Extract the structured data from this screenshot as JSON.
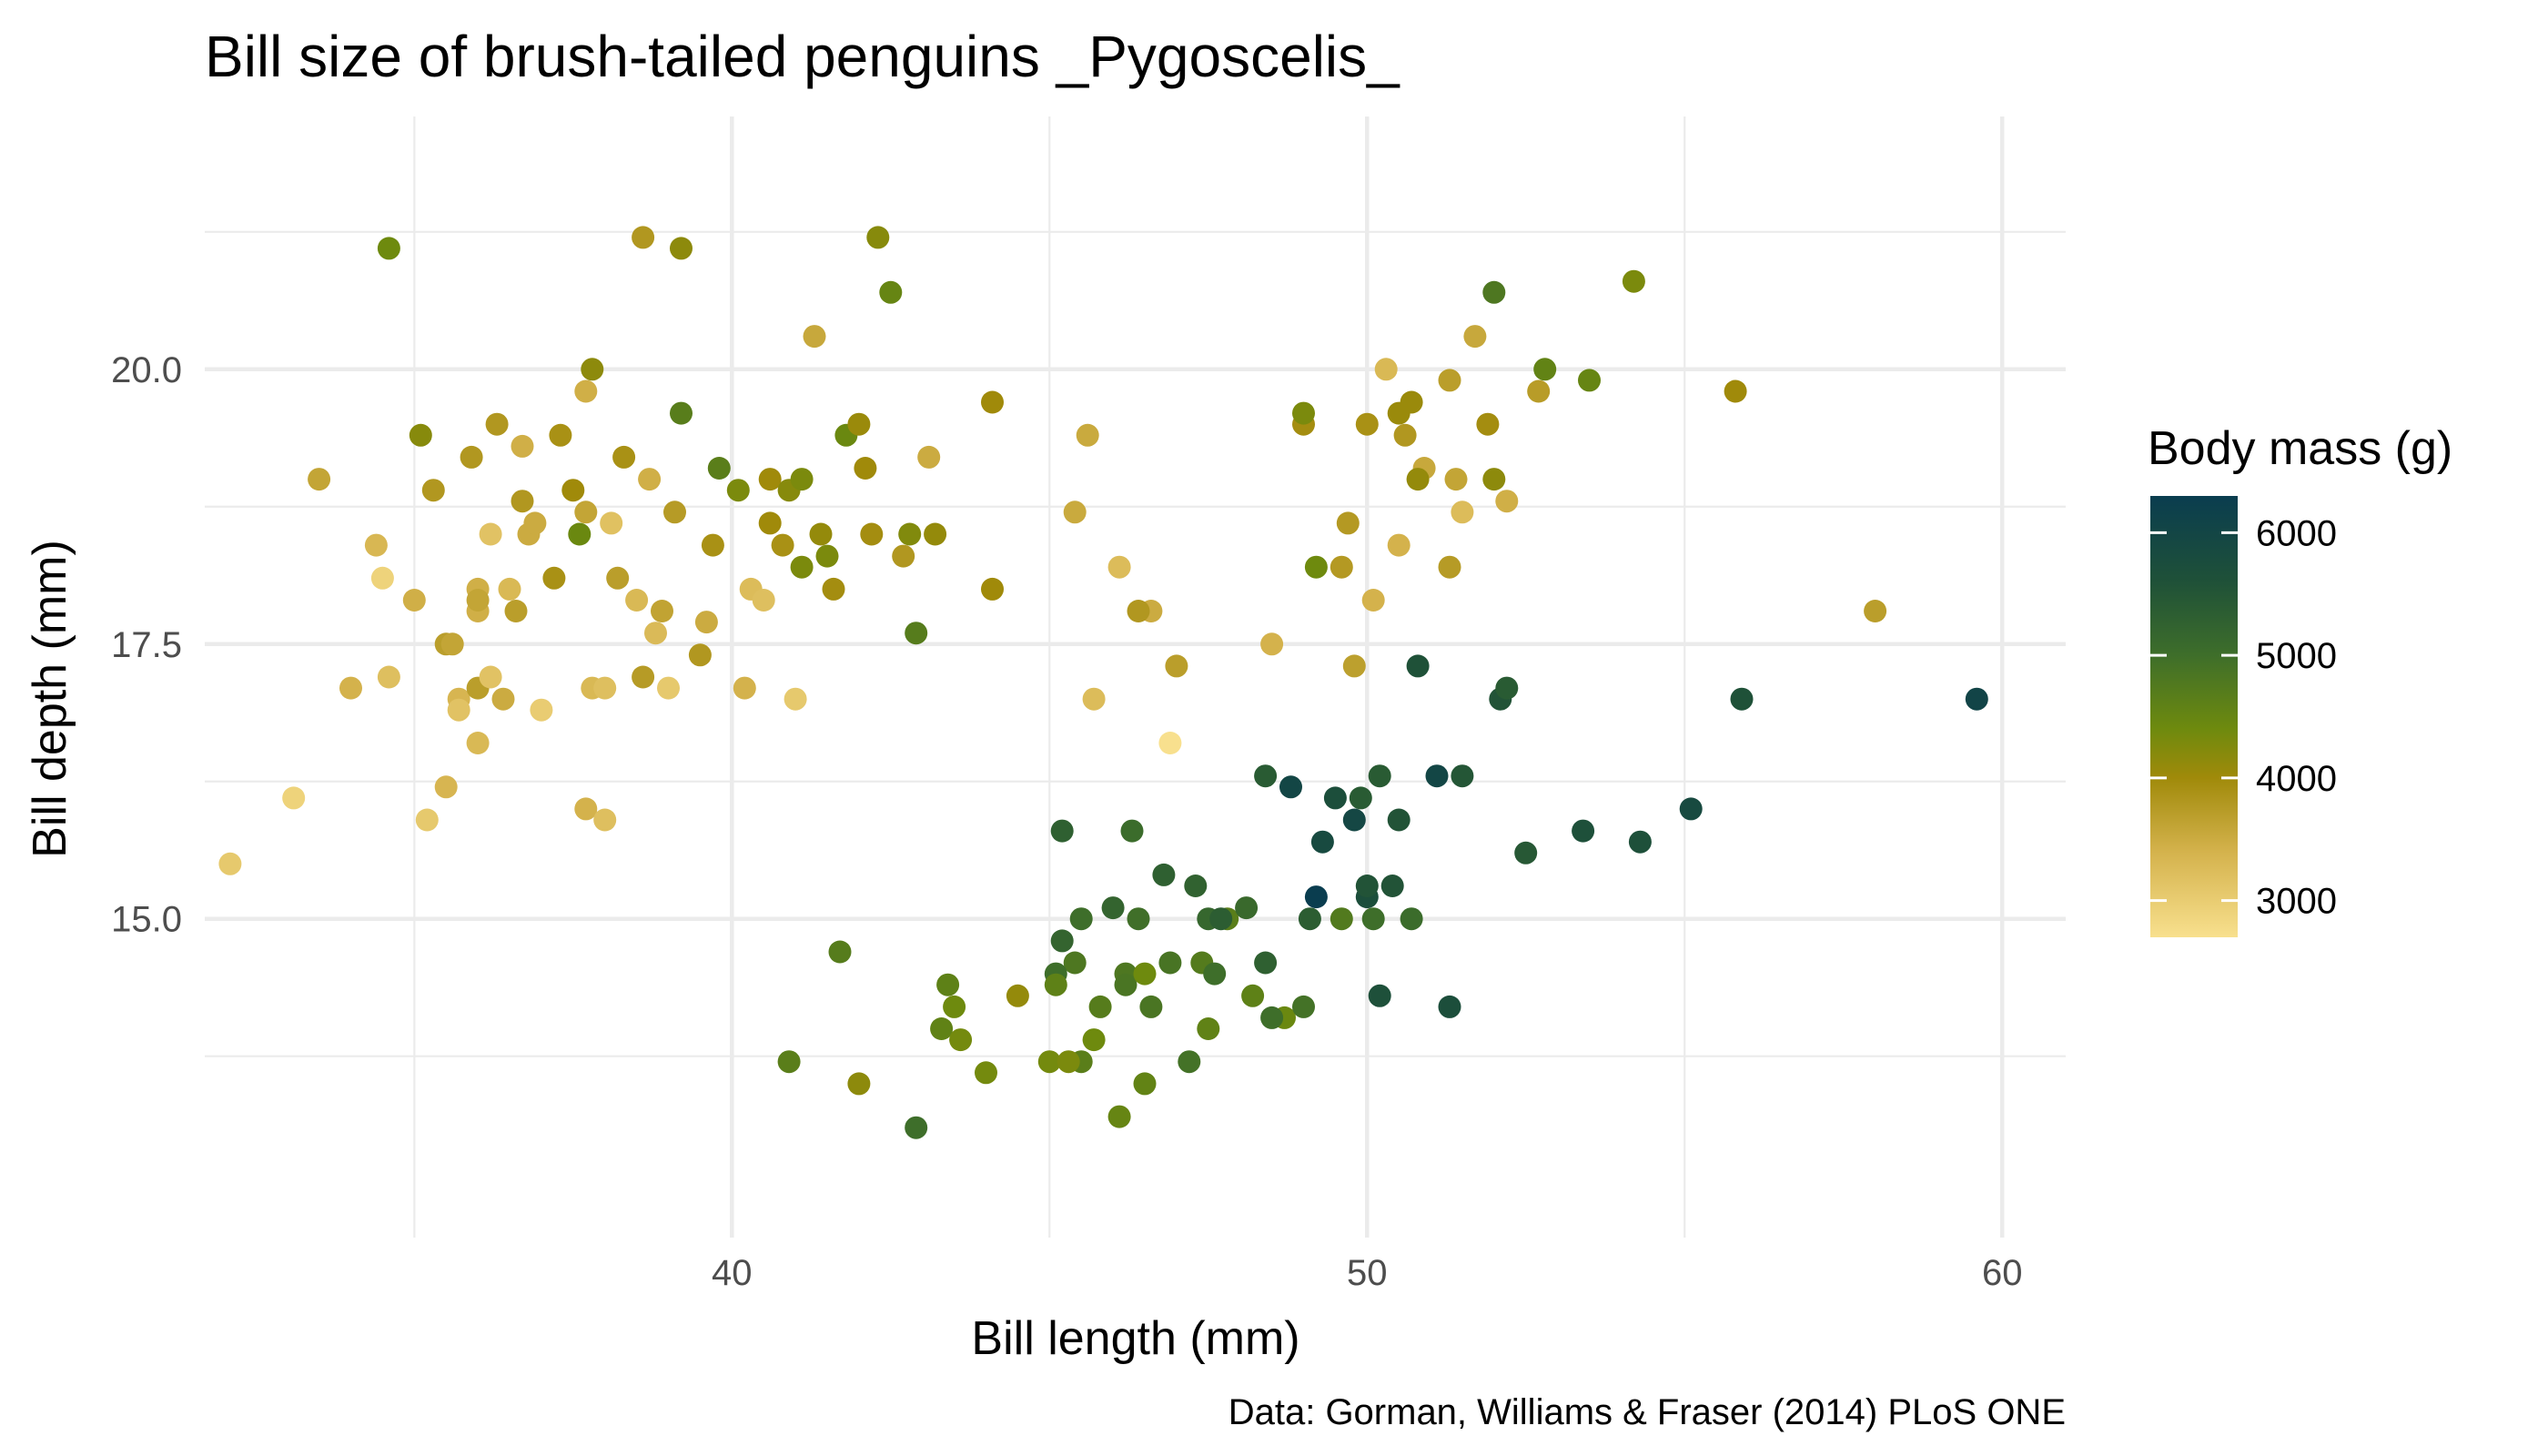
{
  "chart_data": {
    "type": "scatter",
    "title": "Bill size of brush-tailed penguins _Pygoscelis_",
    "xlabel": "Bill length (mm)",
    "ylabel": "Bill depth (mm)",
    "caption": "Data: Gorman, Williams & Fraser (2014) PLoS ONE",
    "xlim": [
      31.7,
      61.0
    ],
    "ylim": [
      12.1,
      22.3
    ],
    "x_major_ticks": [
      40,
      50,
      60
    ],
    "x_tick_labels": [
      "40",
      "50",
      "60"
    ],
    "x_minor_ticks": [
      35,
      45,
      55
    ],
    "y_major_ticks": [
      15.0,
      17.5,
      20.0
    ],
    "y_tick_labels": [
      "15.0",
      "17.5",
      "20.0"
    ],
    "y_minor_ticks": [
      13.75,
      16.25,
      18.75,
      21.25
    ],
    "grid": true,
    "color_scale": {
      "variable": "Body mass (g)",
      "min": 2700,
      "max": 6300,
      "ticks": [
        3000,
        4000,
        5000,
        6000
      ],
      "tick_labels": [
        "3000",
        "4000",
        "5000",
        "6000"
      ],
      "colors": [
        {
          "value": 2700,
          "color": "#f8e08e"
        },
        {
          "value": 3400,
          "color": "#d4b24c"
        },
        {
          "value": 4000,
          "color": "#a08a0a"
        },
        {
          "value": 4400,
          "color": "#6e8a0e"
        },
        {
          "value": 5000,
          "color": "#3e6e2a"
        },
        {
          "value": 5600,
          "color": "#1f5138"
        },
        {
          "value": 6300,
          "color": "#0a3d4f"
        }
      ]
    },
    "points": [
      [
        32.1,
        15.5,
        3050
      ],
      [
        33.1,
        16.1,
        2900
      ],
      [
        33.5,
        19.0,
        3600
      ],
      [
        34.0,
        17.1,
        3400
      ],
      [
        34.4,
        18.4,
        3325
      ],
      [
        34.5,
        18.1,
        2900
      ],
      [
        34.6,
        17.2,
        3200
      ],
      [
        34.6,
        21.1,
        4400
      ],
      [
        35.0,
        17.9,
        3450
      ],
      [
        35.1,
        19.4,
        4200
      ],
      [
        35.2,
        15.9,
        3050
      ],
      [
        35.3,
        18.9,
        3800
      ],
      [
        35.5,
        16.2,
        3350
      ],
      [
        35.5,
        17.5,
        3700
      ],
      [
        35.6,
        17.5,
        3600
      ],
      [
        35.7,
        17.0,
        3350
      ],
      [
        35.7,
        16.9,
        3150
      ],
      [
        35.9,
        19.2,
        3800
      ],
      [
        36.0,
        18.0,
        3450
      ],
      [
        36.0,
        17.1,
        3700
      ],
      [
        36.0,
        17.8,
        3450
      ],
      [
        36.0,
        16.6,
        3300
      ],
      [
        36.0,
        17.9,
        3600
      ],
      [
        36.2,
        18.5,
        3150
      ],
      [
        36.2,
        17.2,
        3150
      ],
      [
        36.3,
        19.5,
        3800
      ],
      [
        36.4,
        17.0,
        3500
      ],
      [
        36.5,
        18.0,
        3300
      ],
      [
        36.6,
        17.8,
        3700
      ],
      [
        36.7,
        18.8,
        3800
      ],
      [
        36.7,
        19.3,
        3450
      ],
      [
        36.8,
        18.5,
        3500
      ],
      [
        36.9,
        18.6,
        3500
      ],
      [
        37.0,
        16.9,
        3000
      ],
      [
        37.2,
        18.1,
        3900
      ],
      [
        37.3,
        19.4,
        3900
      ],
      [
        37.5,
        18.9,
        4000
      ],
      [
        37.6,
        18.5,
        4450
      ],
      [
        37.7,
        18.7,
        3600
      ],
      [
        37.7,
        19.8,
        3450
      ],
      [
        37.7,
        16.0,
        3400
      ],
      [
        37.8,
        17.1,
        3300
      ],
      [
        37.8,
        20.0,
        4150
      ],
      [
        38.0,
        17.1,
        3200
      ],
      [
        38.0,
        15.9,
        3200
      ],
      [
        38.1,
        18.6,
        3175
      ],
      [
        38.2,
        18.1,
        3700
      ],
      [
        38.3,
        19.2,
        3900
      ],
      [
        38.5,
        17.9,
        3300
      ],
      [
        38.6,
        21.2,
        3800
      ],
      [
        38.6,
        17.2,
        3750
      ],
      [
        38.7,
        19.0,
        3450
      ],
      [
        38.8,
        17.6,
        3275
      ],
      [
        38.9,
        17.8,
        3625
      ],
      [
        39.0,
        17.1,
        3050
      ],
      [
        39.1,
        18.7,
        3750
      ],
      [
        39.2,
        19.6,
        4675
      ],
      [
        39.2,
        21.1,
        4150
      ],
      [
        39.5,
        17.4,
        3800
      ],
      [
        39.6,
        17.7,
        3500
      ],
      [
        39.7,
        18.4,
        3900
      ],
      [
        39.8,
        19.1,
        4650
      ],
      [
        40.1,
        18.9,
        4300
      ],
      [
        40.2,
        17.1,
        3400
      ],
      [
        40.3,
        18.0,
        3250
      ],
      [
        40.5,
        17.9,
        3200
      ],
      [
        40.6,
        18.6,
        4000
      ],
      [
        40.6,
        19.0,
        4000
      ],
      [
        40.8,
        18.4,
        3900
      ],
      [
        40.9,
        18.9,
        4200
      ],
      [
        41.0,
        17.0,
        3050
      ],
      [
        41.1,
        18.2,
        4300
      ],
      [
        41.1,
        19.0,
        4300
      ],
      [
        41.3,
        20.3,
        3550
      ],
      [
        41.4,
        18.5,
        4100
      ],
      [
        41.5,
        18.3,
        4300
      ],
      [
        41.6,
        18.0,
        3950
      ],
      [
        41.8,
        19.4,
        4450
      ],
      [
        42.0,
        19.5,
        4050
      ],
      [
        42.1,
        19.1,
        4000
      ],
      [
        42.2,
        18.5,
        3950
      ],
      [
        42.3,
        21.2,
        4200
      ],
      [
        42.5,
        20.7,
        4500
      ],
      [
        42.7,
        18.3,
        3800
      ],
      [
        42.8,
        18.5,
        4250
      ],
      [
        42.9,
        17.6,
        4700
      ],
      [
        43.1,
        19.2,
        3500
      ],
      [
        43.2,
        18.5,
        4100
      ],
      [
        44.1,
        18.0,
        4000
      ],
      [
        44.1,
        19.7,
        4000
      ],
      [
        45.4,
        14.6,
        4800
      ],
      [
        45.2,
        15.8,
        5300
      ],
      [
        45.5,
        13.7,
        4650
      ],
      [
        46.1,
        13.2,
        4500
      ],
      [
        46.5,
        13.5,
        4550
      ],
      [
        46.2,
        14.5,
        4800
      ],
      [
        46.8,
        15.4,
        5300
      ],
      [
        47.3,
        15.3,
        5250
      ],
      [
        47.5,
        15.0,
        5150
      ],
      [
        48.2,
        14.3,
        4600
      ],
      [
        48.4,
        14.6,
        5300
      ],
      [
        48.7,
        14.1,
        4450
      ],
      [
        49.1,
        15.0,
        5350
      ],
      [
        49.2,
        15.2,
        6300
      ],
      [
        49.5,
        16.1,
        5700
      ],
      [
        49.8,
        15.9,
        5950
      ],
      [
        50.0,
        15.2,
        5700
      ],
      [
        50.1,
        15.0,
        5000
      ],
      [
        50.5,
        15.9,
        5550
      ],
      [
        50.7,
        15.0,
        5050
      ],
      [
        51.1,
        16.3,
        6000
      ],
      [
        51.5,
        16.3,
        5500
      ],
      [
        52.1,
        17.0,
        5550
      ],
      [
        52.5,
        15.6,
        5450
      ],
      [
        53.4,
        15.8,
        5650
      ],
      [
        54.3,
        15.7,
        5650
      ],
      [
        55.1,
        16.0,
        5850
      ],
      [
        55.9,
        17.0,
        5600
      ],
      [
        59.6,
        17.0,
        6050
      ],
      [
        48.5,
        14.1,
        5000
      ],
      [
        47.2,
        13.7,
        4925
      ],
      [
        46.9,
        14.6,
        4875
      ],
      [
        45.8,
        14.2,
        4700
      ],
      [
        43.5,
        14.2,
        4400
      ],
      [
        42.9,
        13.1,
        5000
      ],
      [
        44.5,
        14.3,
        4100
      ],
      [
        45.1,
        14.5,
        5000
      ],
      [
        46.3,
        15.8,
        5050
      ],
      [
        50.4,
        15.3,
        5550
      ],
      [
        49.9,
        16.1,
        5400
      ],
      [
        48.8,
        16.2,
        6000
      ],
      [
        47.8,
        15.0,
        4650
      ],
      [
        46.6,
        14.2,
        4850
      ],
      [
        45.2,
        14.8,
        5200
      ],
      [
        41.7,
        14.7,
        4700
      ],
      [
        40.9,
        13.7,
        4650
      ],
      [
        42.0,
        13.5,
        4150
      ],
      [
        43.4,
        14.4,
        4600
      ],
      [
        43.3,
        14.0,
        4575
      ],
      [
        43.6,
        13.9,
        4350
      ],
      [
        44.0,
        13.6,
        4350
      ],
      [
        45.0,
        13.7,
        4350
      ],
      [
        45.1,
        14.4,
        4600
      ],
      [
        45.7,
        13.9,
        4400
      ],
      [
        46.4,
        15.0,
        4975
      ],
      [
        47.4,
        14.6,
        4725
      ],
      [
        48.1,
        15.1,
        5100
      ],
      [
        49.0,
        14.2,
        4925
      ],
      [
        50.2,
        14.3,
        5650
      ],
      [
        51.3,
        14.2,
        5700
      ],
      [
        47.5,
        14.0,
        4575
      ],
      [
        47.6,
        14.5,
        5000
      ],
      [
        46.2,
        14.4,
        4850
      ],
      [
        49.6,
        15.0,
        4750
      ],
      [
        50.0,
        15.3,
        5550
      ],
      [
        45.5,
        15.0,
        5000
      ],
      [
        45.3,
        13.7,
        4300
      ],
      [
        46.0,
        15.1,
        5200
      ],
      [
        46.5,
        14.5,
        4400
      ],
      [
        47.7,
        15.0,
        5350
      ],
      [
        48.4,
        16.3,
        5400
      ],
      [
        49.3,
        15.7,
        5850
      ],
      [
        50.8,
        17.3,
        5600
      ],
      [
        50.2,
        16.3,
        5400
      ],
      [
        52.2,
        17.1,
        5400
      ],
      [
        55.8,
        19.8,
        4000
      ],
      [
        58.0,
        17.8,
        3700
      ],
      [
        54.2,
        20.8,
        4300
      ],
      [
        52.0,
        20.7,
        4800
      ],
      [
        53.5,
        19.9,
        4500
      ],
      [
        52.7,
        19.8,
        3725
      ],
      [
        51.5,
        18.7,
        3250
      ],
      [
        51.9,
        19.5,
        3950
      ],
      [
        50.5,
        19.6,
        4050
      ],
      [
        50.6,
        19.4,
        3800
      ],
      [
        49.0,
        19.5,
        3950
      ],
      [
        50.9,
        19.1,
        3550
      ],
      [
        50.8,
        19.0,
        4100
      ],
      [
        51.3,
        19.9,
        3700
      ],
      [
        49.2,
        18.2,
        4400
      ],
      [
        50.0,
        19.5,
        3900
      ],
      [
        50.3,
        20.0,
        3300
      ],
      [
        45.6,
        19.4,
        3525
      ],
      [
        46.1,
        18.2,
        3250
      ],
      [
        46.6,
        17.8,
        3500
      ],
      [
        49.6,
        18.2,
        3775
      ],
      [
        50.5,
        18.4,
        3400
      ],
      [
        48.5,
        17.5,
        3400
      ],
      [
        50.1,
        17.9,
        3400
      ],
      [
        52.8,
        20.0,
        4550
      ],
      [
        51.4,
        19.0,
        3600
      ],
      [
        51.3,
        18.2,
        3750
      ],
      [
        52.2,
        18.8,
        3450
      ],
      [
        47.0,
        17.3,
        3700
      ],
      [
        46.9,
        16.6,
        2700
      ],
      [
        46.4,
        17.8,
        3800
      ],
      [
        45.7,
        17.0,
        3250
      ],
      [
        45.4,
        18.7,
        3525
      ],
      [
        49.7,
        18.6,
        3775
      ],
      [
        49.8,
        17.3,
        3675
      ],
      [
        50.7,
        19.7,
        4050
      ],
      [
        51.7,
        20.3,
        3550
      ],
      [
        52.0,
        19.0,
        4150
      ],
      [
        49.0,
        19.6,
        4300
      ]
    ]
  }
}
